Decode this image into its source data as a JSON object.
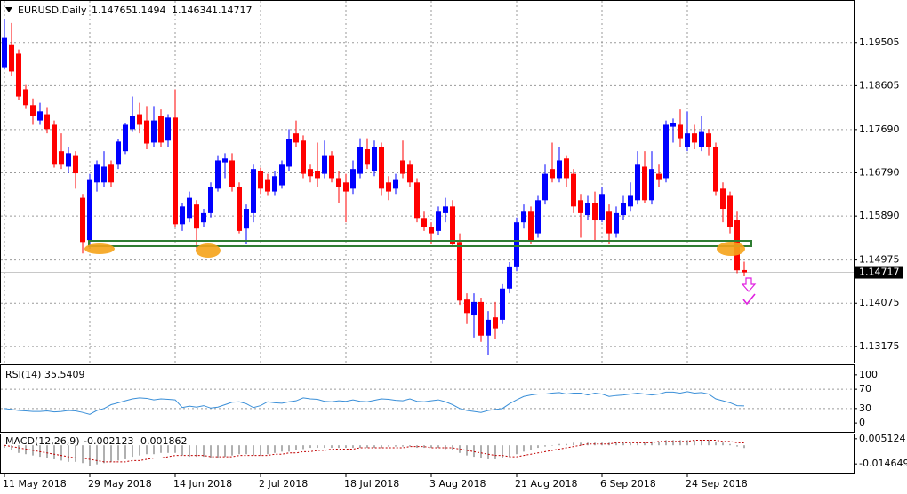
{
  "chart_data": [
    {
      "type": "candlestick",
      "title": "EURUSD,Daily",
      "categories": [
        "11 May 2018",
        null,
        null,
        null,
        null,
        null,
        null,
        null,
        null,
        null,
        null,
        null,
        "29 May 2018",
        null,
        null,
        null,
        null,
        null,
        null,
        null,
        null,
        null,
        null,
        null,
        "14 Jun 2018",
        null,
        null,
        null,
        null,
        null,
        null,
        null,
        null,
        null,
        null,
        null,
        "2 Jul 2018",
        null,
        null,
        null,
        null,
        null,
        null,
        null,
        null,
        null,
        null,
        null,
        "18 Jul 2018",
        null,
        null,
        null,
        null,
        null,
        null,
        null,
        null,
        null,
        null,
        null,
        "3 Aug 2018",
        null,
        null,
        null,
        null,
        null,
        null,
        null,
        null,
        null,
        null,
        null,
        "21 Aug 2018",
        null,
        null,
        null,
        null,
        null,
        null,
        null,
        null,
        null,
        null,
        null,
        "6 Sep 2018",
        null,
        null,
        null,
        null,
        null,
        null,
        null,
        null,
        null,
        null,
        null,
        "24 Sep 2018",
        null,
        null,
        null,
        null,
        null,
        null,
        null,
        null
      ],
      "ohlc": [
        [
          1.1899,
          1.2,
          1.1894,
          1.196
        ],
        [
          1.1945,
          1.1991,
          1.1881,
          1.189
        ],
        [
          1.1927,
          1.1936,
          1.1831,
          1.1838
        ],
        [
          1.1853,
          1.1862,
          1.1812,
          1.182
        ],
        [
          1.182,
          1.1834,
          1.1779,
          1.1797
        ],
        [
          1.1788,
          1.1825,
          1.1779,
          1.1807
        ],
        [
          1.1801,
          1.1816,
          1.1761,
          1.177
        ],
        [
          1.1779,
          1.1788,
          1.169,
          1.1696
        ],
        [
          1.1724,
          1.1761,
          1.1687,
          1.1696
        ],
        [
          1.1692,
          1.1733,
          1.1678,
          1.172
        ],
        [
          1.1714,
          1.1724,
          1.1646,
          1.1678
        ],
        [
          1.1627,
          1.1635,
          1.1511,
          1.1535
        ],
        [
          1.1539,
          1.1677,
          1.1521,
          1.1664
        ],
        [
          1.1659,
          1.1705,
          1.164,
          1.1696
        ],
        [
          1.1659,
          1.1724,
          1.165,
          1.1692
        ],
        [
          1.1696,
          1.1705,
          1.165,
          1.1659
        ],
        [
          1.1696,
          1.175,
          1.1687,
          1.1744
        ],
        [
          1.1724,
          1.1783,
          1.1718,
          1.1779
        ],
        [
          1.177,
          1.1838,
          1.1764,
          1.1797
        ],
        [
          1.1801,
          1.1825,
          1.1761,
          1.1779
        ],
        [
          1.1788,
          1.1818,
          1.1728,
          1.174
        ],
        [
          1.1742,
          1.1818,
          1.1733,
          1.1788
        ],
        [
          1.1797,
          1.1811,
          1.1733,
          1.1742
        ],
        [
          1.1746,
          1.1801,
          1.1733,
          1.1794
        ],
        [
          1.1794,
          1.1853,
          1.1567,
          1.1572
        ],
        [
          1.1572,
          1.1616,
          1.1558,
          1.1609
        ],
        [
          1.1585,
          1.164,
          1.1576,
          1.1627
        ],
        [
          1.1613,
          1.1622,
          1.1517,
          1.1563
        ],
        [
          1.1576,
          1.1604,
          1.1567,
          1.1595
        ],
        [
          1.1595,
          1.1659,
          1.1586,
          1.165
        ],
        [
          1.1646,
          1.1714,
          1.164,
          1.1705
        ],
        [
          1.1701,
          1.172,
          1.1668,
          1.1709
        ],
        [
          1.1705,
          1.172,
          1.164,
          1.165
        ],
        [
          1.165,
          1.1659,
          1.1553,
          1.1558
        ],
        [
          1.1563,
          1.1613,
          1.153,
          1.1604
        ],
        [
          1.1595,
          1.1696,
          1.1576,
          1.1687
        ],
        [
          1.1683,
          1.169,
          1.1635,
          1.1646
        ],
        [
          1.1664,
          1.1677,
          1.1631,
          1.164
        ],
        [
          1.164,
          1.1683,
          1.1631,
          1.1672
        ],
        [
          1.1653,
          1.1705,
          1.1646,
          1.1696
        ],
        [
          1.1692,
          1.177,
          1.1683,
          1.175
        ],
        [
          1.1761,
          1.1788,
          1.1733,
          1.1742
        ],
        [
          1.1746,
          1.1757,
          1.1668,
          1.1677
        ],
        [
          1.1687,
          1.1696,
          1.1659,
          1.1672
        ],
        [
          1.1683,
          1.1742,
          1.165,
          1.1668
        ],
        [
          1.1677,
          1.1746,
          1.1668,
          1.1714
        ],
        [
          1.1714,
          1.1724,
          1.1659,
          1.1668
        ],
        [
          1.1668,
          1.1683,
          1.1616,
          1.165
        ],
        [
          1.1659,
          1.1677,
          1.1576,
          1.164
        ],
        [
          1.1646,
          1.1705,
          1.1635,
          1.1687
        ],
        [
          1.1677,
          1.1751,
          1.1668,
          1.1733
        ],
        [
          1.1728,
          1.1751,
          1.1687,
          1.1696
        ],
        [
          1.1683,
          1.1746,
          1.1672,
          1.1733
        ],
        [
          1.1733,
          1.1742,
          1.1631,
          1.1646
        ],
        [
          1.1659,
          1.1672,
          1.1622,
          1.164
        ],
        [
          1.1646,
          1.1677,
          1.1635,
          1.1664
        ],
        [
          1.1705,
          1.1746,
          1.1668,
          1.1677
        ],
        [
          1.1696,
          1.1705,
          1.165,
          1.1659
        ],
        [
          1.1659,
          1.1668,
          1.1576,
          1.1585
        ],
        [
          1.1585,
          1.1598,
          1.1558,
          1.1567
        ],
        [
          1.1567,
          1.1576,
          1.153,
          1.1553
        ],
        [
          1.1558,
          1.1609,
          1.1549,
          1.1598
        ],
        [
          1.1595,
          1.1627,
          1.1576,
          1.1609
        ],
        [
          1.1609,
          1.1622,
          1.1525,
          1.153
        ],
        [
          1.1535,
          1.1553,
          1.1404,
          1.1413
        ],
        [
          1.1415,
          1.1428,
          1.1364,
          1.1387
        ],
        [
          1.1382,
          1.1428,
          1.1336,
          1.141
        ],
        [
          1.141,
          1.1419,
          1.1327,
          1.134
        ],
        [
          1.134,
          1.1391,
          1.1299,
          1.1373
        ],
        [
          1.1378,
          1.141,
          1.1332,
          1.1355
        ],
        [
          1.1373,
          1.1447,
          1.1364,
          1.1438
        ],
        [
          1.1438,
          1.1493,
          1.1428,
          1.1484
        ],
        [
          1.1484,
          1.1586,
          1.1474,
          1.1576
        ],
        [
          1.1576,
          1.1613,
          1.1563,
          1.1598
        ],
        [
          1.1598,
          1.1609,
          1.153,
          1.1539
        ],
        [
          1.1553,
          1.1631,
          1.1544,
          1.1622
        ],
        [
          1.1622,
          1.1696,
          1.1613,
          1.1677
        ],
        [
          1.1687,
          1.1742,
          1.1659,
          1.1668
        ],
        [
          1.1668,
          1.1733,
          1.1659,
          1.1705
        ],
        [
          1.1709,
          1.1714,
          1.165,
          1.1668
        ],
        [
          1.1677,
          1.1687,
          1.1595,
          1.1609
        ],
        [
          1.1622,
          1.1635,
          1.1544,
          1.1595
        ],
        [
          1.1591,
          1.1631,
          1.158,
          1.1616
        ],
        [
          1.1616,
          1.164,
          1.1539,
          1.158
        ],
        [
          1.158,
          1.165,
          1.1576,
          1.1635
        ],
        [
          1.1598,
          1.1613,
          1.153,
          1.1553
        ],
        [
          1.1553,
          1.1609,
          1.1544,
          1.1595
        ],
        [
          1.1591,
          1.1631,
          1.158,
          1.1616
        ],
        [
          1.1609,
          1.1659,
          1.1598,
          1.1631
        ],
        [
          1.1622,
          1.1724,
          1.1613,
          1.1696
        ],
        [
          1.1692,
          1.1724,
          1.1616,
          1.1622
        ],
        [
          1.1622,
          1.1724,
          1.1613,
          1.1687
        ],
        [
          1.1677,
          1.1696,
          1.165,
          1.1664
        ],
        [
          1.1668,
          1.1788,
          1.1659,
          1.1779
        ],
        [
          1.1775,
          1.1792,
          1.1742,
          1.1783
        ],
        [
          1.1779,
          1.1811,
          1.1733,
          1.1751
        ],
        [
          1.1733,
          1.1807,
          1.1724,
          1.1761
        ],
        [
          1.1761,
          1.1779,
          1.1728,
          1.1742
        ],
        [
          1.1733,
          1.1797,
          1.1724,
          1.1764
        ],
        [
          1.1761,
          1.177,
          1.1714,
          1.1733
        ],
        [
          1.1733,
          1.1742,
          1.1631,
          1.164
        ],
        [
          1.1646,
          1.1659,
          1.1576,
          1.1604
        ],
        [
          1.1631,
          1.164,
          1.1553,
          1.1567
        ],
        [
          1.158,
          1.1598,
          1.147,
          1.1476
        ],
        [
          1.14765,
          1.1494,
          1.14634,
          1.14717
        ]
      ],
      "up_color": "#0000ff",
      "down_color": "#ff0000",
      "ylim": [
        1.1284,
        1.2037
      ],
      "yticks": [
        1.19505,
        1.18605,
        {
          "value": 1.1769,
          "label": "1.17690"
        },
        {
          "value": 1.1679,
          "label": "1.16790"
        },
        {
          "value": 1.1589,
          "label": "1.15890"
        },
        1.14975,
        1.14075,
        1.13175
      ],
      "grid": true
    },
    {
      "type": "line",
      "title": "RSI(14)",
      "color": "#3a8fd8",
      "values": [
        30,
        28,
        26,
        25,
        24,
        24,
        25,
        23,
        24,
        26,
        25,
        22,
        18,
        26,
        30,
        38,
        42,
        46,
        50,
        52,
        51,
        48,
        50,
        49,
        48,
        32,
        35,
        33,
        36,
        31,
        33,
        38,
        43,
        44,
        40,
        32,
        36,
        44,
        42,
        41,
        44,
        46,
        52,
        50,
        49,
        45,
        44,
        46,
        45,
        48,
        45,
        44,
        47,
        50,
        49,
        47,
        46,
        50,
        45,
        44,
        46,
        48,
        44,
        38,
        30,
        26,
        24,
        22,
        26,
        28,
        30,
        40,
        48,
        55,
        58,
        60,
        60,
        62,
        63,
        60,
        62,
        62,
        58,
        62,
        60,
        55,
        57,
        58,
        60,
        62,
        60,
        58,
        60,
        64,
        64,
        62,
        65,
        62,
        63,
        60,
        50,
        46,
        42,
        36,
        35.5409
      ],
      "ylim": [
        -18.2,
        120
      ],
      "yticks": [
        100,
        70,
        30,
        0
      ]
    },
    {
      "type": "bar",
      "title": "MACD(12,26,9)",
      "series": [
        {
          "type": "bar",
          "color": "#b0b0b0",
          "values": [
            -0.002,
            -0.004,
            -0.006,
            -0.007,
            -0.008,
            -0.009,
            -0.01,
            -0.011,
            -0.012,
            -0.013,
            -0.013,
            -0.014,
            -0.016,
            -0.015,
            -0.014,
            -0.013,
            -0.012,
            -0.011,
            -0.009,
            -0.008,
            -0.007,
            -0.007,
            -0.006,
            -0.006,
            -0.006,
            -0.008,
            -0.009,
            -0.009,
            -0.009,
            -0.01,
            -0.01,
            -0.009,
            -0.008,
            -0.007,
            -0.007,
            -0.008,
            -0.008,
            -0.007,
            -0.006,
            -0.005,
            -0.005,
            -0.004,
            -0.003,
            -0.002,
            -0.002,
            -0.002,
            -0.002,
            -0.002,
            -0.002,
            -0.002,
            -0.002,
            -0.002,
            -0.002,
            -0.002,
            -0.001,
            -0.001,
            -0.001,
            -0.001,
            -0.002,
            -0.002,
            -0.002,
            -0.002,
            -0.003,
            -0.004,
            -0.006,
            -0.008,
            -0.009,
            -0.01,
            -0.011,
            -0.011,
            -0.01,
            -0.009,
            -0.007,
            -0.005,
            -0.004,
            -0.002,
            -0.001,
            0.0,
            0.001,
            0.001,
            0.002,
            0.002,
            0.002,
            0.002,
            0.002,
            0.002,
            0.002,
            0.002,
            0.002,
            0.002,
            0.002,
            0.003,
            0.003,
            0.004,
            0.004,
            0.004,
            0.004,
            0.004,
            0.004,
            0.004,
            0.003,
            0.002,
            0.001,
            -0.001,
            -0.002123
          ]
        },
        {
          "type": "line",
          "color": "#c00000",
          "values": [
            0,
            -0.001,
            -0.002,
            -0.003,
            -0.004,
            -0.005,
            -0.006,
            -0.007,
            -0.008,
            -0.009,
            -0.01,
            -0.01,
            -0.011,
            -0.012,
            -0.013,
            -0.013,
            -0.013,
            -0.013,
            -0.012,
            -0.012,
            -0.011,
            -0.01,
            -0.01,
            -0.009,
            -0.008,
            -0.008,
            -0.008,
            -0.008,
            -0.008,
            -0.009,
            -0.009,
            -0.009,
            -0.009,
            -0.008,
            -0.008,
            -0.008,
            -0.008,
            -0.008,
            -0.007,
            -0.007,
            -0.006,
            -0.006,
            -0.005,
            -0.005,
            -0.004,
            -0.004,
            -0.003,
            -0.003,
            -0.003,
            -0.003,
            -0.002,
            -0.002,
            -0.002,
            -0.002,
            -0.002,
            -0.002,
            -0.002,
            -0.001,
            -0.001,
            -0.001,
            -0.002,
            -0.002,
            -0.002,
            -0.002,
            -0.003,
            -0.004,
            -0.005,
            -0.006,
            -0.007,
            -0.008,
            -0.008,
            -0.009,
            -0.009,
            -0.008,
            -0.007,
            -0.006,
            -0.005,
            -0.004,
            -0.003,
            -0.002,
            -0.001,
            0.0,
            0.001,
            0.001,
            0.001,
            0.001,
            0.002,
            0.002,
            0.002,
            0.002,
            0.002,
            0.002,
            0.003,
            0.003,
            0.003,
            0.003,
            0.003,
            0.004,
            0.004,
            0.004,
            0.004,
            0.003,
            0.003,
            0.002,
            0.001862
          ]
        }
      ],
      "ylim": [
        -0.0215,
        0.0085
      ],
      "yticks": [
        0.005124,
        -0.014649
      ]
    }
  ]
}
